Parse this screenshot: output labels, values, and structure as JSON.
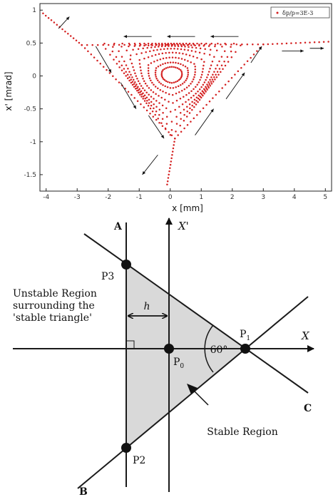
{
  "chart_data": {
    "type": "scatter",
    "title": "",
    "xlabel": "x [mm]",
    "ylabel": "x' [mrad]",
    "xlim": [
      -4.2,
      5.2
    ],
    "ylim": [
      -1.75,
      1.1
    ],
    "xticks": [
      -4,
      -3,
      -2,
      -1,
      0,
      1,
      2,
      3,
      4,
      5
    ],
    "yticks": [
      1,
      0.5,
      0,
      -0.5,
      -1,
      -1.5
    ],
    "xtick_labels": [
      "-4",
      "-3",
      "-2",
      "-1",
      "0",
      "1",
      "2",
      "3",
      "4",
      "5"
    ],
    "ytick_labels": [
      "1",
      "0.5",
      "0",
      "-0.5",
      "-1",
      "-1.5"
    ],
    "grid": false,
    "legend_position": "top-right",
    "series": [
      {
        "name": "δp/p=3E-3",
        "color": "#d42020",
        "marker": "dot",
        "orbits": [
          {
            "kind": "closed",
            "scale": 0.12
          },
          {
            "kind": "closed",
            "scale": 0.2
          },
          {
            "kind": "closed",
            "scale": 0.3
          },
          {
            "kind": "closed",
            "scale": 0.42
          },
          {
            "kind": "closed",
            "scale": 0.55
          },
          {
            "kind": "closed",
            "scale": 0.68
          },
          {
            "kind": "closed",
            "scale": 0.8
          },
          {
            "kind": "closed",
            "scale": 0.9
          }
        ],
        "separatrix_vertices": {
          "P1": [
            3.0,
            0.48
          ],
          "P2": [
            0.15,
            -0.95
          ],
          "P3": [
            -2.85,
            0.47
          ]
        },
        "outgoing_arms": [
          {
            "from": [
              3.0,
              0.48
            ],
            "to": [
              5.1,
              0.52
            ]
          },
          {
            "from": [
              -2.85,
              0.47
            ],
            "to": [
              -4.1,
              0.95
            ]
          },
          {
            "from": [
              0.15,
              -0.95
            ],
            "to": [
              -0.1,
              -1.65
            ]
          }
        ]
      }
    ],
    "flow_arrows": [
      {
        "from": [
          2.2,
          0.6
        ],
        "to": [
          1.3,
          0.6
        ]
      },
      {
        "from": [
          0.8,
          0.6
        ],
        "to": [
          -0.1,
          0.6
        ]
      },
      {
        "from": [
          -0.6,
          0.6
        ],
        "to": [
          -1.5,
          0.6
        ]
      },
      {
        "from": [
          -3.6,
          0.72
        ],
        "to": [
          -3.25,
          0.9
        ]
      },
      {
        "from": [
          -2.4,
          0.45
        ],
        "to": [
          -1.9,
          0.05
        ]
      },
      {
        "from": [
          -1.6,
          -0.1
        ],
        "to": [
          -1.1,
          -0.5
        ]
      },
      {
        "from": [
          -0.7,
          -0.6
        ],
        "to": [
          -0.2,
          -0.95
        ]
      },
      {
        "from": [
          -0.4,
          -1.2
        ],
        "to": [
          -0.9,
          -1.5
        ]
      },
      {
        "from": [
          0.8,
          -0.9
        ],
        "to": [
          1.4,
          -0.5
        ]
      },
      {
        "from": [
          1.8,
          -0.35
        ],
        "to": [
          2.4,
          0.05
        ]
      },
      {
        "from": [
          2.6,
          0.2
        ],
        "to": [
          2.95,
          0.45
        ]
      },
      {
        "from": [
          3.6,
          0.38
        ],
        "to": [
          4.3,
          0.38
        ]
      },
      {
        "from": [
          4.5,
          0.42
        ],
        "to": [
          4.95,
          0.42
        ]
      }
    ]
  },
  "diagram": {
    "labels": {
      "A": "A",
      "B": "B",
      "C": "C",
      "X_axis": "X",
      "Xprime_axis": "X'",
      "P0": "P",
      "P0_sub": "0",
      "P1": "P",
      "P1_sub": "1",
      "P2": "P2",
      "P3": "P3",
      "h": "h",
      "angle": "60°",
      "stable_region": "Stable Region",
      "unstable_line1": "Unstable Region",
      "unstable_line2": "surrounding the",
      "unstable_line3": "'stable triangle'"
    },
    "colors": {
      "triangle_fill": "#d9d9d9",
      "line": "#1a1a1a"
    }
  }
}
